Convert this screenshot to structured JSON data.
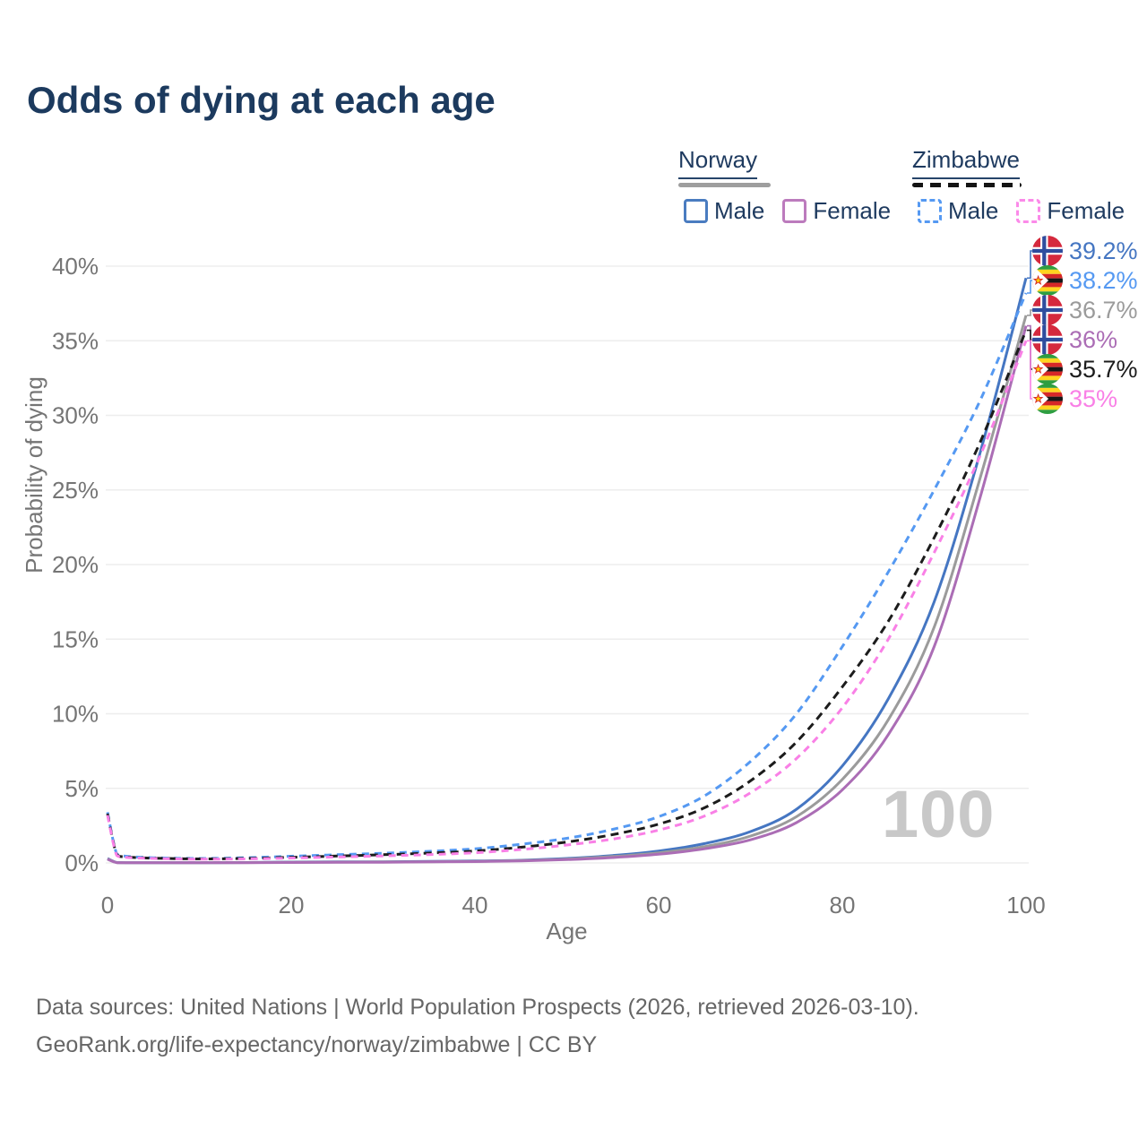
{
  "title": "Odds of dying at each age",
  "watermark": "100",
  "legend": {
    "groups": [
      {
        "title": "Norway",
        "line_style": "solid",
        "bar_color": "#9e9e9e",
        "items": [
          {
            "label": "Male",
            "color": "#4a7cc0",
            "dashed": false
          },
          {
            "label": "Female",
            "color": "#bc7bbd",
            "dashed": false
          }
        ]
      },
      {
        "title": "Zimbabwe",
        "line_style": "dashed",
        "bar_color": "#141414",
        "items": [
          {
            "label": "Male",
            "color": "#5599f2",
            "dashed": true
          },
          {
            "label": "Female",
            "color": "#fb8ae9",
            "dashed": true
          }
        ]
      }
    ]
  },
  "footer": {
    "line1": "Data sources: United Nations | World Population Prospects (2026, retrieved 2026-03-10).",
    "line2": "GeoRank.org/life-expectancy/norway/zimbabwe | CC BY"
  },
  "chart_data": {
    "type": "line",
    "title": "Odds of dying at each age",
    "xlabel": "Age",
    "ylabel": "Probability of dying",
    "xlim": [
      0,
      100
    ],
    "ylim": [
      0,
      40
    ],
    "xticks": [
      0,
      20,
      40,
      60,
      80,
      100
    ],
    "yticks": [
      0,
      5,
      10,
      15,
      20,
      25,
      30,
      35,
      40
    ],
    "ytick_suffix": "%",
    "grid": "horizontal",
    "legend_position": "top-right",
    "x": [
      0,
      1,
      2,
      5,
      10,
      15,
      20,
      25,
      30,
      35,
      40,
      45,
      50,
      55,
      60,
      65,
      70,
      75,
      80,
      85,
      90,
      95,
      100
    ],
    "series": [
      {
        "name": "Norway Male",
        "country": "norway",
        "color": "#4576c2",
        "dash": null,
        "end_label": "39.2%",
        "values": [
          0.3,
          0.03,
          0.02,
          0.01,
          0.01,
          0.03,
          0.06,
          0.07,
          0.08,
          0.1,
          0.13,
          0.18,
          0.3,
          0.5,
          0.8,
          1.3,
          2.1,
          3.6,
          6.5,
          11.0,
          17.5,
          27.5,
          39.2
        ]
      },
      {
        "name": "Zimbabwe Male",
        "country": "zimbabwe",
        "color": "#5599f2",
        "dash": "8 6",
        "end_label": "38.2%",
        "values": [
          3.4,
          0.6,
          0.45,
          0.35,
          0.3,
          0.35,
          0.45,
          0.55,
          0.65,
          0.78,
          0.95,
          1.25,
          1.65,
          2.25,
          3.1,
          4.5,
          6.8,
          10.0,
          14.5,
          19.5,
          25.0,
          31.0,
          38.2
        ]
      },
      {
        "name": "Norway Overall",
        "country": "norway",
        "color": "#9b9b9b",
        "dash": null,
        "end_label": "36.7%",
        "values": [
          0.27,
          0.025,
          0.018,
          0.01,
          0.01,
          0.025,
          0.045,
          0.055,
          0.065,
          0.08,
          0.11,
          0.16,
          0.26,
          0.43,
          0.68,
          1.1,
          1.8,
          3.1,
          5.6,
          9.6,
          15.8,
          25.8,
          36.7
        ]
      },
      {
        "name": "Norway Female",
        "country": "norway",
        "color": "#ab6db5",
        "dash": null,
        "end_label": "36%",
        "values": [
          0.25,
          0.02,
          0.015,
          0.01,
          0.01,
          0.02,
          0.03,
          0.04,
          0.05,
          0.07,
          0.09,
          0.14,
          0.22,
          0.36,
          0.58,
          0.95,
          1.55,
          2.7,
          4.9,
          8.6,
          14.5,
          24.5,
          36.0
        ]
      },
      {
        "name": "Zimbabwe Overall",
        "country": "zimbabwe",
        "color": "#1c1c1c",
        "dash": "9 6",
        "end_label": "35.7%",
        "values": [
          3.3,
          0.55,
          0.4,
          0.32,
          0.27,
          0.3,
          0.38,
          0.46,
          0.55,
          0.66,
          0.8,
          1.05,
          1.4,
          1.9,
          2.6,
          3.7,
          5.5,
          8.1,
          11.8,
          16.2,
          21.8,
          28.2,
          35.7
        ]
      },
      {
        "name": "Zimbabwe Female",
        "country": "zimbabwe",
        "color": "#f980e6",
        "dash": "8 6",
        "end_label": "35%",
        "values": [
          3.2,
          0.5,
          0.37,
          0.3,
          0.25,
          0.27,
          0.33,
          0.4,
          0.47,
          0.56,
          0.68,
          0.9,
          1.2,
          1.6,
          2.2,
          3.15,
          4.7,
          7.0,
          10.4,
          15.0,
          20.8,
          27.3,
          35.0
        ]
      }
    ]
  }
}
